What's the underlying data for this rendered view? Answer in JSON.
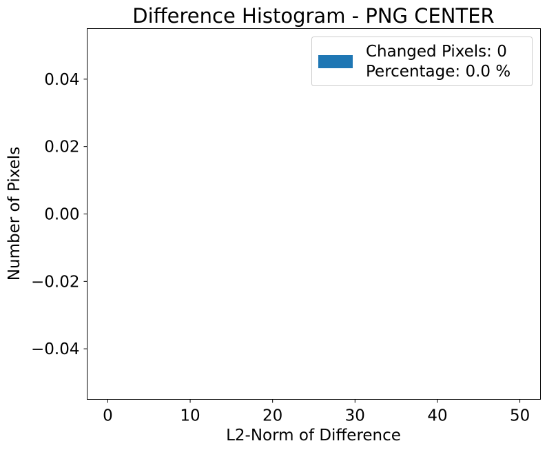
{
  "chart_data": {
    "type": "bar",
    "title": "Difference Histogram - PNG CENTER",
    "xlabel": "L2-Norm of Difference",
    "ylabel": "Number of Pixels",
    "xlim": [
      -2.5,
      52.5
    ],
    "ylim": [
      -0.055,
      0.055
    ],
    "x_ticks": [
      0,
      10,
      20,
      30,
      40,
      50
    ],
    "x_tick_labels": [
      "0",
      "10",
      "20",
      "30",
      "40",
      "50"
    ],
    "y_ticks": [
      -0.04,
      -0.02,
      0.0,
      0.02,
      0.04
    ],
    "y_tick_labels": [
      "−0.04",
      "−0.02",
      "0.00",
      "0.02",
      "0.04"
    ],
    "grid": false,
    "legend": {
      "placement": "top-right",
      "color": "#1f77b4",
      "lines": [
        "Changed Pixels: 0",
        "Percentage: 0.0 %"
      ]
    },
    "series": [
      {
        "values": []
      }
    ]
  }
}
